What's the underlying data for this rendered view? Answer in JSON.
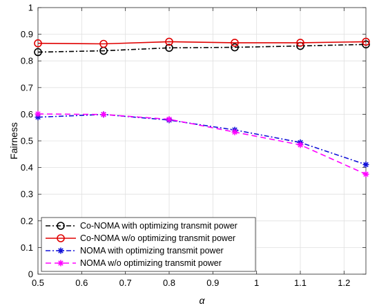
{
  "chart_data": {
    "type": "line",
    "xlabel": "α",
    "ylabel": "Fairness",
    "xlim": [
      0.5,
      1.25
    ],
    "ylim": [
      0,
      1
    ],
    "xticks": [
      "0.5",
      "0.6",
      "0.7",
      "0.8",
      "0.9",
      "1",
      "1.1",
      "1.2"
    ],
    "yticks": [
      "0",
      "0.1",
      "0.2",
      "0.3",
      "0.4",
      "0.5",
      "0.6",
      "0.7",
      "0.8",
      "0.9",
      "1"
    ],
    "grid": true,
    "legend_position": "bottom-left",
    "x": [
      0.5,
      0.65,
      0.8,
      0.95,
      1.1,
      1.25
    ],
    "series": [
      {
        "name": "Co-NOMA with optimizing transmit power",
        "values": [
          0.833,
          0.838,
          0.849,
          0.851,
          0.856,
          0.862
        ],
        "color": "#000000",
        "line_style": "dash-dot",
        "marker": "circle"
      },
      {
        "name": "Co-NOMA w/o optimizing transmit power",
        "values": [
          0.866,
          0.864,
          0.872,
          0.868,
          0.868,
          0.872
        ],
        "color": "#e00000",
        "line_style": "solid",
        "marker": "circle"
      },
      {
        "name": "NOMA with optimizing transmit power",
        "values": [
          0.589,
          0.599,
          0.578,
          0.541,
          0.494,
          0.411
        ],
        "color": "#1010d8",
        "line_style": "dash-dot",
        "marker": "asterisk"
      },
      {
        "name": "NOMA w/o optimizing transmit power",
        "values": [
          0.601,
          0.599,
          0.581,
          0.533,
          0.485,
          0.375
        ],
        "color": "#ff00ff",
        "line_style": "dashed",
        "marker": "asterisk"
      }
    ]
  }
}
